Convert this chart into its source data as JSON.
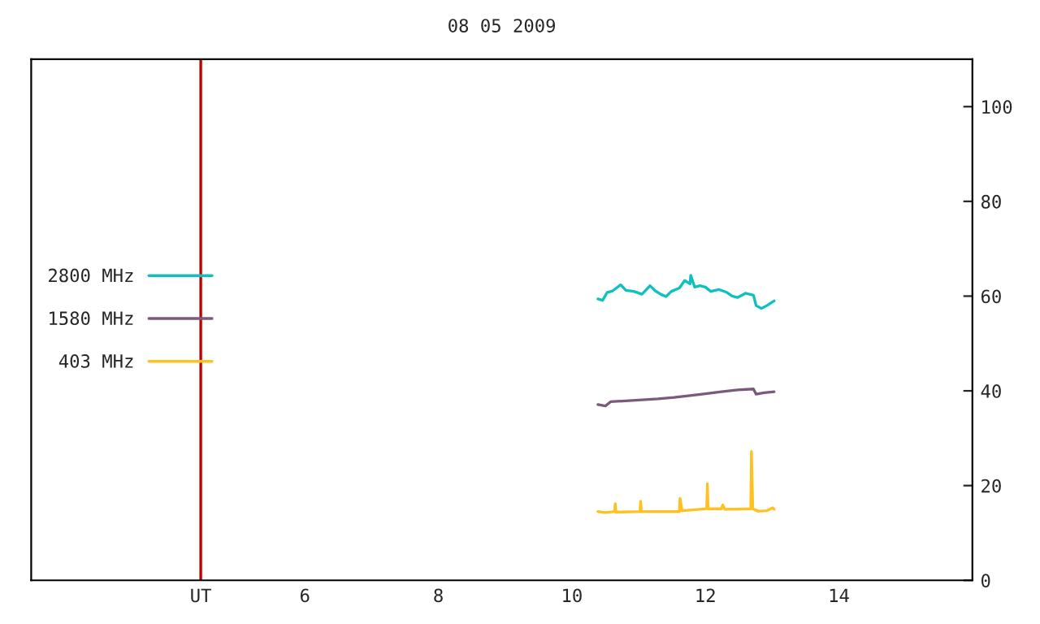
{
  "chart_data": {
    "type": "line",
    "title": "08 05 2009",
    "xlim": [
      1.9,
      16.0
    ],
    "xticks": [
      {
        "value": 4.44,
        "label": "UT"
      },
      6,
      8,
      10,
      12,
      14
    ],
    "ylim": [
      0,
      110
    ],
    "yticks": [
      0,
      20,
      40,
      60,
      80,
      100
    ],
    "ref_lines": [
      {
        "axis": "x",
        "value": 4.44,
        "color": "#c00000"
      }
    ],
    "legend": "left",
    "grid": false,
    "series": [
      {
        "name": "2800 MHz",
        "color": "#10c0c0",
        "x": [
          10.39,
          10.46,
          10.53,
          10.61,
          10.73,
          10.81,
          10.93,
          11.05,
          11.17,
          11.25,
          11.33,
          11.41,
          11.49,
          11.61,
          11.69,
          11.77,
          11.78,
          11.84,
          11.92,
          12.0,
          12.08,
          12.2,
          12.32,
          12.4,
          12.48,
          12.6,
          12.72,
          12.76,
          12.84,
          12.92,
          13.03
        ],
        "values": [
          59.4,
          59.1,
          60.8,
          61.1,
          62.4,
          61.2,
          61.0,
          60.4,
          62.2,
          61.1,
          60.4,
          59.9,
          61.0,
          61.7,
          63.3,
          62.6,
          64.4,
          61.9,
          62.2,
          61.9,
          61.0,
          61.4,
          60.8,
          60.0,
          59.7,
          60.6,
          60.2,
          58.0,
          57.4,
          58.0,
          59.0
        ]
      },
      {
        "name": "1580 MHz",
        "color": "#7a5a7a",
        "x": [
          10.39,
          10.5,
          10.58,
          10.81,
          11.05,
          11.29,
          11.53,
          11.77,
          12.0,
          12.24,
          12.48,
          12.72,
          12.76,
          12.88,
          13.03
        ],
        "values": [
          37.1,
          36.8,
          37.7,
          37.9,
          38.1,
          38.3,
          38.6,
          39.0,
          39.4,
          39.8,
          40.2,
          40.4,
          39.3,
          39.6,
          39.8
        ]
      },
      {
        "name": "403 MHz",
        "color": "#ffc020",
        "x": [
          10.39,
          10.5,
          10.64,
          10.65,
          10.66,
          11.02,
          11.03,
          11.04,
          11.37,
          11.61,
          11.62,
          11.65,
          11.84,
          12.02,
          12.03,
          12.04,
          12.24,
          12.26,
          12.29,
          12.68,
          12.69,
          12.71,
          12.79,
          12.92,
          13.01,
          13.03
        ],
        "values": [
          14.5,
          14.3,
          14.5,
          16.2,
          14.4,
          14.5,
          16.7,
          14.5,
          14.5,
          14.5,
          17.3,
          14.7,
          14.9,
          15.1,
          20.4,
          15.1,
          15.1,
          15.9,
          15.0,
          15.1,
          27.2,
          15.1,
          14.6,
          14.7,
          15.3,
          15.0
        ]
      }
    ]
  }
}
